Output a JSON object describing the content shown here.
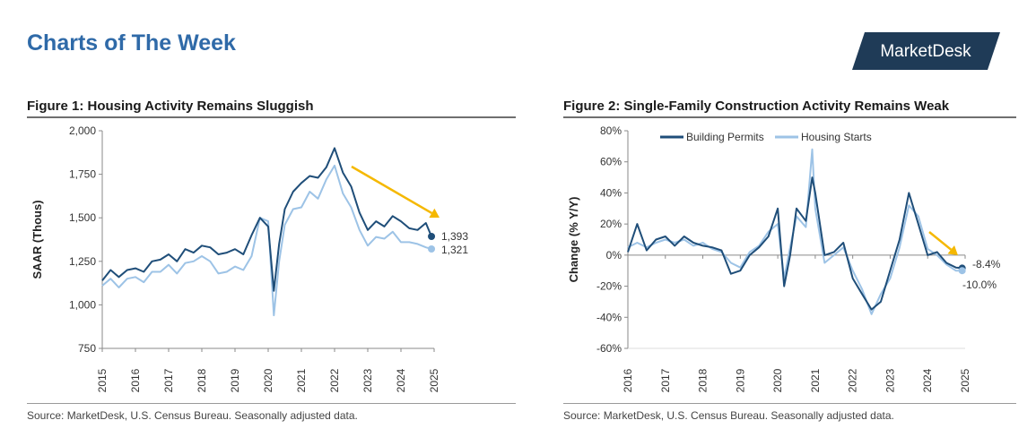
{
  "page": {
    "title": "Charts of The Week",
    "brand": "MarketDesk"
  },
  "figures": [
    {
      "title": "Figure 1: Housing Activity Remains Sluggish",
      "source": "Source: MarketDesk, U.S. Census Bureau. Seasonally adjusted data."
    },
    {
      "title": "Figure 2: Single-Family Construction Activity Remains Weak",
      "source": "Source: MarketDesk, U.S. Census Bureau. Seasonally adjusted data."
    }
  ],
  "colors": {
    "dark_series": "#1f4e79",
    "light_series": "#9dc3e6",
    "trend_arrow": "#f5b800",
    "title_blue": "#2f6aa8"
  },
  "chart_data": [
    {
      "type": "line",
      "title": "Figure 1: Housing Activity Remains Sluggish",
      "xlabel": "",
      "ylabel": "SAAR (Thous)",
      "xlim": [
        2015,
        2025
      ],
      "ylim": [
        750,
        2000
      ],
      "yticks": [
        750,
        1000,
        1250,
        1500,
        1750,
        2000
      ],
      "ytick_labels": [
        "750",
        "1,000",
        "1,250",
        "1,500",
        "1,750",
        "2,000"
      ],
      "xticks": [
        2015,
        2016,
        2017,
        2018,
        2019,
        2020,
        2021,
        2022,
        2023,
        2024,
        2025
      ],
      "xtick_labels": [
        "2015",
        "2016",
        "2017",
        "2018",
        "2019",
        "2020",
        "2021",
        "2022",
        "2023",
        "2024",
        "2025"
      ],
      "grid": false,
      "legend": "none",
      "series": [
        {
          "x": [
            2015.0,
            2015.25,
            2015.5,
            2015.75,
            2016.0,
            2016.25,
            2016.5,
            2016.75,
            2017.0,
            2017.25,
            2017.5,
            2017.75,
            2018.0,
            2018.25,
            2018.5,
            2018.75,
            2019.0,
            2019.25,
            2019.5,
            2019.75,
            2020.0,
            2020.17,
            2020.33,
            2020.5,
            2020.75,
            2021.0,
            2021.25,
            2021.5,
            2021.75,
            2022.0,
            2022.25,
            2022.5,
            2022.75,
            2023.0,
            2023.25,
            2023.5,
            2023.75,
            2024.0,
            2024.25,
            2024.5,
            2024.75,
            2024.92
          ],
          "values": [
            1140,
            1200,
            1160,
            1200,
            1210,
            1190,
            1250,
            1260,
            1290,
            1250,
            1320,
            1300,
            1340,
            1330,
            1290,
            1300,
            1320,
            1290,
            1400,
            1500,
            1450,
            1080,
            1350,
            1550,
            1650,
            1700,
            1740,
            1730,
            1790,
            1900,
            1760,
            1680,
            1530,
            1430,
            1480,
            1450,
            1510,
            1480,
            1440,
            1430,
            1470,
            1393
          ],
          "end_label": "1,393"
        },
        {
          "x": [
            2015.0,
            2015.25,
            2015.5,
            2015.75,
            2016.0,
            2016.25,
            2016.5,
            2016.75,
            2017.0,
            2017.25,
            2017.5,
            2017.75,
            2018.0,
            2018.25,
            2018.5,
            2018.75,
            2019.0,
            2019.25,
            2019.5,
            2019.75,
            2020.0,
            2020.17,
            2020.33,
            2020.5,
            2020.75,
            2021.0,
            2021.25,
            2021.5,
            2021.75,
            2022.0,
            2022.25,
            2022.5,
            2022.75,
            2023.0,
            2023.25,
            2023.5,
            2023.75,
            2024.0,
            2024.25,
            2024.5,
            2024.75,
            2024.92
          ],
          "values": [
            1110,
            1150,
            1100,
            1150,
            1160,
            1130,
            1190,
            1190,
            1230,
            1180,
            1240,
            1250,
            1280,
            1250,
            1180,
            1190,
            1220,
            1200,
            1280,
            1500,
            1480,
            940,
            1250,
            1460,
            1550,
            1560,
            1650,
            1610,
            1720,
            1800,
            1640,
            1560,
            1430,
            1340,
            1390,
            1380,
            1420,
            1360,
            1360,
            1350,
            1330,
            1321
          ],
          "end_label": "1,321"
        }
      ],
      "annotations": [
        "1,393",
        "1,321"
      ]
    },
    {
      "type": "line",
      "title": "Figure 2: Single-Family Construction Activity Remains Weak",
      "xlabel": "",
      "ylabel": "Change (% Y/Y)",
      "xlim": [
        2016,
        2025
      ],
      "ylim": [
        -60,
        80
      ],
      "yticks": [
        -60,
        -40,
        -20,
        0,
        20,
        40,
        60,
        80
      ],
      "ytick_labels": [
        "-60%",
        "-40%",
        "-20%",
        "0%",
        "20%",
        "40%",
        "60%",
        "80%"
      ],
      "xticks": [
        2016,
        2017,
        2018,
        2019,
        2020,
        2021,
        2022,
        2023,
        2024,
        2025
      ],
      "xtick_labels": [
        "2016",
        "2017",
        "2018",
        "2019",
        "2020",
        "2021",
        "2022",
        "2023",
        "2024",
        "2025"
      ],
      "grid": false,
      "legend": "top",
      "series": [
        {
          "name": "Building Permits",
          "x": [
            2016.0,
            2016.25,
            2016.5,
            2016.75,
            2017.0,
            2017.25,
            2017.5,
            2017.75,
            2018.0,
            2018.25,
            2018.5,
            2018.75,
            2019.0,
            2019.25,
            2019.5,
            2019.75,
            2020.0,
            2020.17,
            2020.33,
            2020.5,
            2020.75,
            2020.92,
            2021.0,
            2021.25,
            2021.5,
            2021.75,
            2022.0,
            2022.25,
            2022.5,
            2022.75,
            2023.0,
            2023.25,
            2023.5,
            2023.75,
            2024.0,
            2024.25,
            2024.5,
            2024.75,
            2024.92
          ],
          "values": [
            2,
            20,
            3,
            10,
            12,
            6,
            12,
            8,
            6,
            5,
            3,
            -12,
            -10,
            0,
            5,
            12,
            30,
            -20,
            0,
            30,
            22,
            50,
            40,
            0,
            2,
            8,
            -15,
            -25,
            -35,
            -30,
            -10,
            10,
            40,
            20,
            0,
            2,
            -5,
            -8,
            -8.4
          ],
          "end_label": "-8.4%"
        },
        {
          "name": "Housing Starts",
          "x": [
            2016.0,
            2016.25,
            2016.5,
            2016.75,
            2017.0,
            2017.25,
            2017.5,
            2017.75,
            2018.0,
            2018.25,
            2018.5,
            2018.75,
            2019.0,
            2019.25,
            2019.5,
            2019.75,
            2020.0,
            2020.17,
            2020.33,
            2020.5,
            2020.75,
            2020.92,
            2021.0,
            2021.25,
            2021.5,
            2021.75,
            2022.0,
            2022.25,
            2022.5,
            2022.75,
            2023.0,
            2023.25,
            2023.5,
            2023.75,
            2024.0,
            2024.25,
            2024.5,
            2024.75,
            2024.92
          ],
          "values": [
            5,
            8,
            5,
            8,
            10,
            8,
            10,
            6,
            8,
            4,
            2,
            -5,
            -8,
            2,
            6,
            15,
            20,
            -15,
            5,
            25,
            18,
            68,
            30,
            -5,
            0,
            5,
            -10,
            -22,
            -38,
            -25,
            -15,
            5,
            32,
            25,
            4,
            0,
            -6,
            -10,
            -10.0
          ],
          "end_label": "-10.0%"
        }
      ],
      "annotations": [
        "-8.4%",
        "-10.0%"
      ]
    }
  ]
}
